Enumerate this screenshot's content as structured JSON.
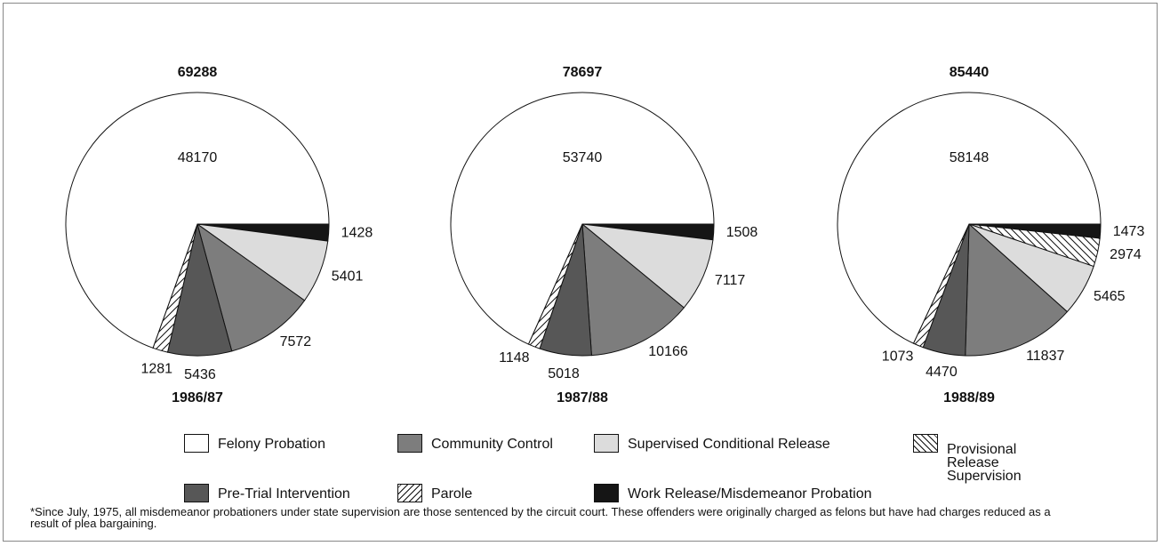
{
  "chart_data": [
    {
      "type": "pie",
      "title": "69288",
      "subtitle": "1986/87",
      "categories": [
        "Work Release/Misdemeanor Probation",
        "Supervised Conditional Release",
        "Community Control",
        "Pre-Trial Intervention",
        "Parole",
        "Felony Probation"
      ],
      "values": [
        1428,
        5401,
        7572,
        5436,
        1281,
        48170
      ],
      "colors": [
        "#151515",
        "#dcdcdc",
        "#7d7d7d",
        "#575757",
        "hatch-right",
        "#ffffff"
      ]
    },
    {
      "type": "pie",
      "title": "78697",
      "subtitle": "1987/88",
      "categories": [
        "Work Release/Misdemeanor Probation",
        "Supervised Conditional Release",
        "Community Control",
        "Pre-Trial Intervention",
        "Parole",
        "Felony Probation"
      ],
      "values": [
        1508,
        7117,
        10166,
        5018,
        1148,
        53740
      ],
      "colors": [
        "#151515",
        "#dcdcdc",
        "#7d7d7d",
        "#575757",
        "hatch-right",
        "#ffffff"
      ]
    },
    {
      "type": "pie",
      "title": "85440",
      "subtitle": "1988/89",
      "categories": [
        "Work Release/Misdemeanor Probation",
        "Provisional Release Supervision",
        "Supervised Conditional Release",
        "Community Control",
        "Pre-Trial Intervention",
        "Parole",
        "Felony Probation"
      ],
      "values": [
        1473,
        2974,
        5465,
        11837,
        4470,
        1073,
        58148
      ],
      "colors": [
        "#151515",
        "hatch-left",
        "#dcdcdc",
        "#7d7d7d",
        "#575757",
        "hatch-right",
        "#ffffff"
      ]
    }
  ],
  "footnote": "*Since July, 1975, all misdemeanor probationers under state supervision are those sentenced by the circuit court.  These offenders were originally charged as felons but have had charges reduced as a result of plea bargaining."
}
